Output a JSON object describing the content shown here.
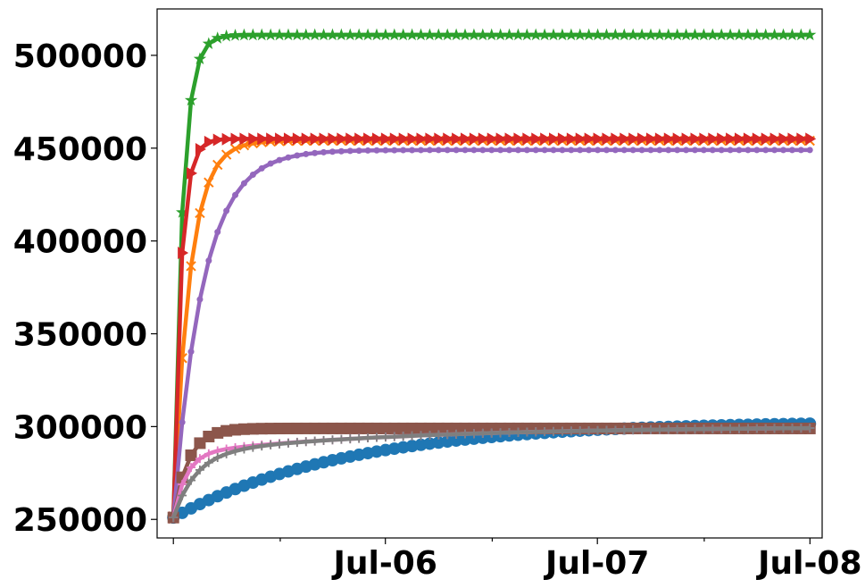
{
  "chart_data": {
    "type": "line",
    "title": "",
    "xlabel": "",
    "ylabel": "",
    "grid": false,
    "legend": "none",
    "xlim": [
      "2005-06-03",
      "2008-07-22"
    ],
    "ylim": [
      240000,
      525000
    ],
    "x_major_ticks": [
      "2005-07-01",
      "2006-07-01",
      "2007-07-01",
      "2008-07-01"
    ],
    "x_minor_ticks": [
      "2006-01-01",
      "2007-01-01",
      "2008-01-01"
    ],
    "x_tick_labels": [
      "",
      "Jul-06",
      "Jul-07",
      "Jul-08"
    ],
    "y_ticks": [
      250000,
      300000,
      350000,
      400000,
      450000,
      500000
    ],
    "y_tick_labels": [
      "250000",
      "300000",
      "350000",
      "400000",
      "450000",
      "500000"
    ],
    "x_start": "2005-07-01",
    "x_step_months": 0.5,
    "n_points": 73,
    "series": [
      {
        "color": "#1f77b4",
        "marker": "circle",
        "start": 251000,
        "end": 303000,
        "k": 0.05,
        "kind": "saturate"
      },
      {
        "color": "#ff7f0e",
        "marker": "x",
        "start": 251000,
        "end": 454000,
        "k": 0.55,
        "kind": "saturate"
      },
      {
        "color": "#2ca02c",
        "marker": "star",
        "start": 251000,
        "end": 511000,
        "k": 1.0,
        "kind": "saturate"
      },
      {
        "color": "#d62728",
        "marker": "triangle-right",
        "start": 251000,
        "end": 455000,
        "k": 1.2,
        "kind": "saturate"
      },
      {
        "color": "#9467bd",
        "marker": "dot",
        "start": 251000,
        "end": 449000,
        "k": 0.3,
        "kind": "saturate"
      },
      {
        "color": "#8c564b",
        "marker": "square",
        "start": 251000,
        "end": 299000,
        "k": 0.6,
        "kind": "saturate"
      },
      {
        "color": "#e377c2",
        "marker": "plus",
        "start": 251000,
        "end": 300000,
        "k": 0.7,
        "kind": "two-stage"
      },
      {
        "color": "#7f7f7f",
        "marker": "plus",
        "start": 251000,
        "end": 300000,
        "k": 0.4,
        "kind": "two-stage"
      }
    ]
  }
}
